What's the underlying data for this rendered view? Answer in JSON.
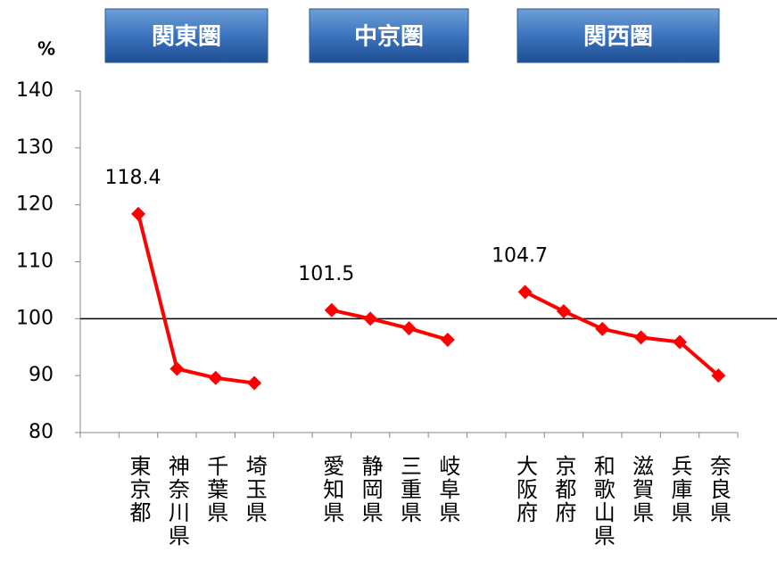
{
  "chart_data": {
    "type": "line",
    "y_label": "%",
    "groups": [
      "関東圏",
      "中京圏",
      "関西圏"
    ],
    "categories": [
      null,
      "東京都",
      "神奈川県",
      "千葉県",
      "埼玉県",
      null,
      "愛知県",
      "静岡県",
      "三重県",
      "岐阜県",
      null,
      "大阪府",
      "京都府",
      "和歌山県",
      "滋賀県",
      "兵庫県",
      "奈良県"
    ],
    "series": [
      {
        "color": "#ff0000",
        "values": [
          null,
          118.4,
          91.2,
          89.6,
          88.7,
          null,
          101.5,
          100.0,
          98.3,
          96.3,
          null,
          104.7,
          101.3,
          98.2,
          96.7,
          95.9,
          90.0
        ],
        "value_labels": [
          null,
          "118.4",
          null,
          null,
          null,
          null,
          "101.5",
          null,
          null,
          null,
          null,
          "104.7",
          null,
          null,
          null,
          null,
          null
        ]
      }
    ],
    "reference_line": 100,
    "ylim": [
      80,
      140
    ],
    "yticks": [
      80,
      90,
      100,
      110,
      120,
      130,
      140
    ]
  }
}
